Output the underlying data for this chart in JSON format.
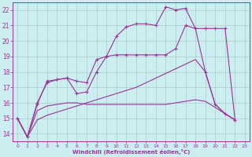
{
  "background_color": "#cceef0",
  "grid_color": "#aacccc",
  "line_color": "#993399",
  "xlabel": "Windchill (Refroidissement éolien,°C)",
  "ylim": [
    13.5,
    22.5
  ],
  "xlim": [
    -0.5,
    23.5
  ],
  "yticks": [
    14,
    15,
    16,
    17,
    18,
    19,
    20,
    21,
    22
  ],
  "xticks": [
    0,
    1,
    2,
    3,
    4,
    5,
    6,
    7,
    8,
    9,
    10,
    11,
    12,
    13,
    14,
    15,
    16,
    17,
    18,
    19,
    20,
    21,
    22,
    23
  ],
  "series_marked_1": {
    "x": [
      0,
      1,
      2,
      3,
      4,
      5,
      6,
      7,
      8,
      9,
      10,
      11,
      12,
      13,
      14,
      15,
      16,
      17,
      18,
      19,
      20,
      21,
      22
    ],
    "y": [
      15.0,
      13.8,
      15.9,
      17.4,
      17.5,
      17.6,
      16.6,
      16.7,
      18.0,
      19.0,
      20.3,
      20.9,
      21.1,
      21.1,
      21.0,
      22.2,
      22.0,
      22.1,
      20.8,
      18.0,
      15.9,
      15.3,
      14.9
    ]
  },
  "series_marked_2": {
    "x": [
      0,
      1,
      2,
      3,
      4,
      5,
      6,
      7,
      8,
      9,
      10,
      11,
      12,
      13,
      14,
      15,
      16,
      17,
      18,
      19,
      20,
      21,
      22
    ],
    "y": [
      15.0,
      13.8,
      16.0,
      17.3,
      17.5,
      17.6,
      17.4,
      17.3,
      18.8,
      19.0,
      19.1,
      19.1,
      19.1,
      19.1,
      19.1,
      19.1,
      19.5,
      21.0,
      20.8,
      20.8,
      20.8,
      20.8,
      14.9
    ]
  },
  "series_flat_1": {
    "x": [
      0,
      1,
      2,
      3,
      4,
      5,
      6,
      7,
      8,
      9,
      10,
      11,
      12,
      13,
      14,
      15,
      16,
      17,
      18,
      19,
      20,
      21,
      22
    ],
    "y": [
      15.0,
      13.8,
      15.5,
      15.8,
      15.9,
      16.0,
      16.0,
      15.9,
      15.9,
      15.9,
      15.9,
      15.9,
      15.9,
      15.9,
      15.9,
      15.9,
      16.0,
      16.1,
      16.2,
      16.1,
      15.7,
      15.3,
      14.9
    ]
  },
  "series_rising_1": {
    "x": [
      0,
      1,
      2,
      3,
      4,
      5,
      6,
      7,
      8,
      9,
      10,
      11,
      12,
      13,
      14,
      15,
      16,
      17,
      18,
      19,
      20,
      21,
      22
    ],
    "y": [
      15.0,
      13.8,
      14.9,
      15.2,
      15.4,
      15.6,
      15.8,
      16.0,
      16.2,
      16.4,
      16.6,
      16.8,
      17.0,
      17.3,
      17.6,
      17.9,
      18.2,
      18.5,
      18.8,
      18.0,
      15.9,
      15.3,
      14.9
    ]
  }
}
